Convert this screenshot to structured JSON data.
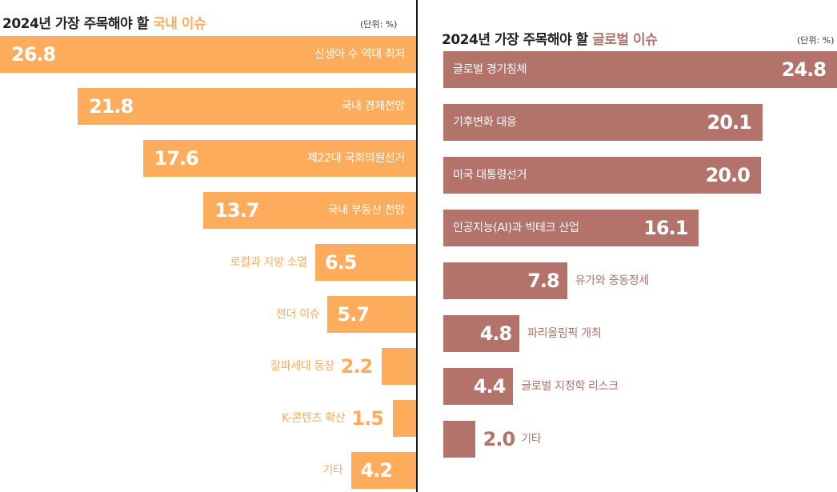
{
  "colors": {
    "domestic": "#fcac5a",
    "global": "#b3726a",
    "title_text": "#222222",
    "white": "#ffffff"
  },
  "chart_data": [
    {
      "type": "bar",
      "orientation": "horizontal",
      "title_prefix": "2024년 가장 주목해야 할 ",
      "title_highlight": "국내 이슈",
      "unit": "(단위: %)",
      "xlim": [
        0,
        26.8
      ],
      "bar_direction": "right-aligned",
      "categories": [
        "신생아 수 역대 최저",
        "국내 경제전망",
        "제22대 국회의원선거",
        "국내 부동산 전망",
        "로컬과 지방 소멸",
        "젠더 이슈",
        "잘파세대 등장",
        "K-콘텐츠 확산",
        "기타"
      ],
      "values": [
        26.8,
        21.8,
        17.6,
        13.7,
        6.5,
        5.7,
        2.2,
        1.5,
        4.2
      ],
      "value_labels": [
        "26.8",
        "21.8",
        "17.6",
        "13.7",
        "6.5",
        "5.7",
        "2.2",
        "1.5",
        "4.2"
      ]
    },
    {
      "type": "bar",
      "orientation": "horizontal",
      "title_prefix": "2024년 가장 주목해야 할 ",
      "title_highlight": "글로벌 이슈",
      "unit": "(단위: %)",
      "xlim": [
        0,
        24.8
      ],
      "bar_direction": "left-aligned",
      "categories": [
        "글로벌 경기침체",
        "기후변화 대응",
        "미국 대통령선거",
        "인공지능(AI)과 빅테크 산업",
        "유가와 중동정세",
        "파리올림픽 개최",
        "글로벌 지정학 리스크",
        "기타"
      ],
      "values": [
        24.8,
        20.1,
        20.0,
        16.1,
        7.8,
        4.8,
        4.4,
        2.0
      ],
      "value_labels": [
        "24.8",
        "20.1",
        "20.0",
        "16.1",
        "7.8",
        "4.8",
        "4.4",
        "2.0"
      ]
    }
  ]
}
